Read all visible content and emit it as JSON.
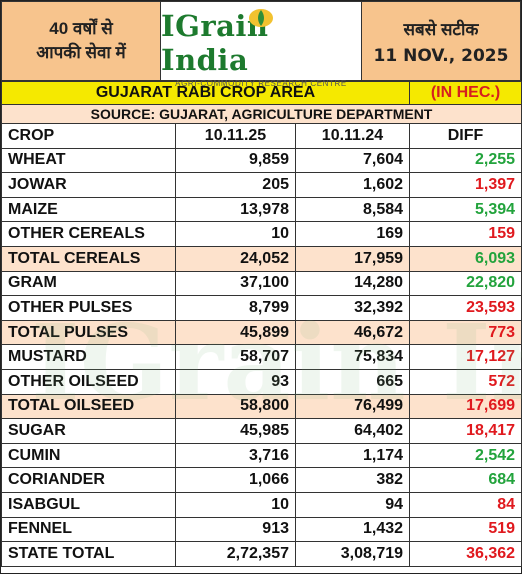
{
  "header": {
    "left_line1": "40 वर्षों से",
    "left_line2": "आपकी सेवा में",
    "brand_name": "IGrain India",
    "brand_tagline": "AGRI-COMMODITY RESEARCH CENTRE",
    "right_line1": "सबसे सटीक",
    "date": "11 NOV., 2025",
    "watermark": "IGrain India"
  },
  "table": {
    "title": "GUJARAT RABI CROP AREA",
    "unit": "(IN HEC.)",
    "source": "SOURCE: GUJARAT, AGRICULTURE DEPARTMENT",
    "columns": [
      "CROP",
      "10.11.25",
      "10.11.24",
      "DIFF"
    ],
    "rows": [
      {
        "crop": "WHEAT",
        "cur": "9,859",
        "prev": "7,604",
        "diff": "2,255",
        "trend": "up",
        "total": false
      },
      {
        "crop": "JOWAR",
        "cur": "205",
        "prev": "1,602",
        "diff": "1,397",
        "trend": "down",
        "total": false
      },
      {
        "crop": "MAIZE",
        "cur": "13,978",
        "prev": "8,584",
        "diff": "5,394",
        "trend": "up",
        "total": false
      },
      {
        "crop": "OTHER CEREALS",
        "cur": "10",
        "prev": "169",
        "diff": "159",
        "trend": "down",
        "total": false
      },
      {
        "crop": "TOTAL CEREALS",
        "cur": "24,052",
        "prev": "17,959",
        "diff": "6,093",
        "trend": "up",
        "total": true
      },
      {
        "crop": "GRAM",
        "cur": "37,100",
        "prev": "14,280",
        "diff": "22,820",
        "trend": "up",
        "total": false
      },
      {
        "crop": "OTHER PULSES",
        "cur": "8,799",
        "prev": "32,392",
        "diff": "23,593",
        "trend": "down",
        "total": false
      },
      {
        "crop": "TOTAL PULSES",
        "cur": "45,899",
        "prev": "46,672",
        "diff": "773",
        "trend": "down",
        "total": true
      },
      {
        "crop": "MUSTARD",
        "cur": "58,707",
        "prev": "75,834",
        "diff": "17,127",
        "trend": "down",
        "total": false
      },
      {
        "crop": "OTHER OILSEED",
        "cur": "93",
        "prev": "665",
        "diff": "572",
        "trend": "down",
        "total": false
      },
      {
        "crop": "TOTAL OILSEED",
        "cur": "58,800",
        "prev": "76,499",
        "diff": "17,699",
        "trend": "down",
        "total": true
      },
      {
        "crop": "SUGAR",
        "cur": "45,985",
        "prev": "64,402",
        "diff": "18,417",
        "trend": "down",
        "total": false
      },
      {
        "crop": "CUMIN",
        "cur": "3,716",
        "prev": "1,174",
        "diff": "2,542",
        "trend": "up",
        "total": false
      },
      {
        "crop": "CORIANDER",
        "cur": "1,066",
        "prev": "382",
        "diff": "684",
        "trend": "up",
        "total": false
      },
      {
        "crop": "ISABGUL",
        "cur": "10",
        "prev": "94",
        "diff": "84",
        "trend": "down",
        "total": false
      },
      {
        "crop": "FENNEL",
        "cur": "913",
        "prev": "1,432",
        "diff": "519",
        "trend": "down",
        "total": false
      },
      {
        "crop": "STATE TOTAL",
        "cur": "2,72,357",
        "prev": "3,08,719",
        "diff": "36,362",
        "trend": "down",
        "total": false
      }
    ]
  },
  "colors": {
    "header_box": "#f7c48d",
    "title_band": "#f5e900",
    "total_row": "#fde2cc",
    "increase": "#22a33c",
    "decrease": "#e0191e",
    "brand": "#1d7a2e"
  }
}
